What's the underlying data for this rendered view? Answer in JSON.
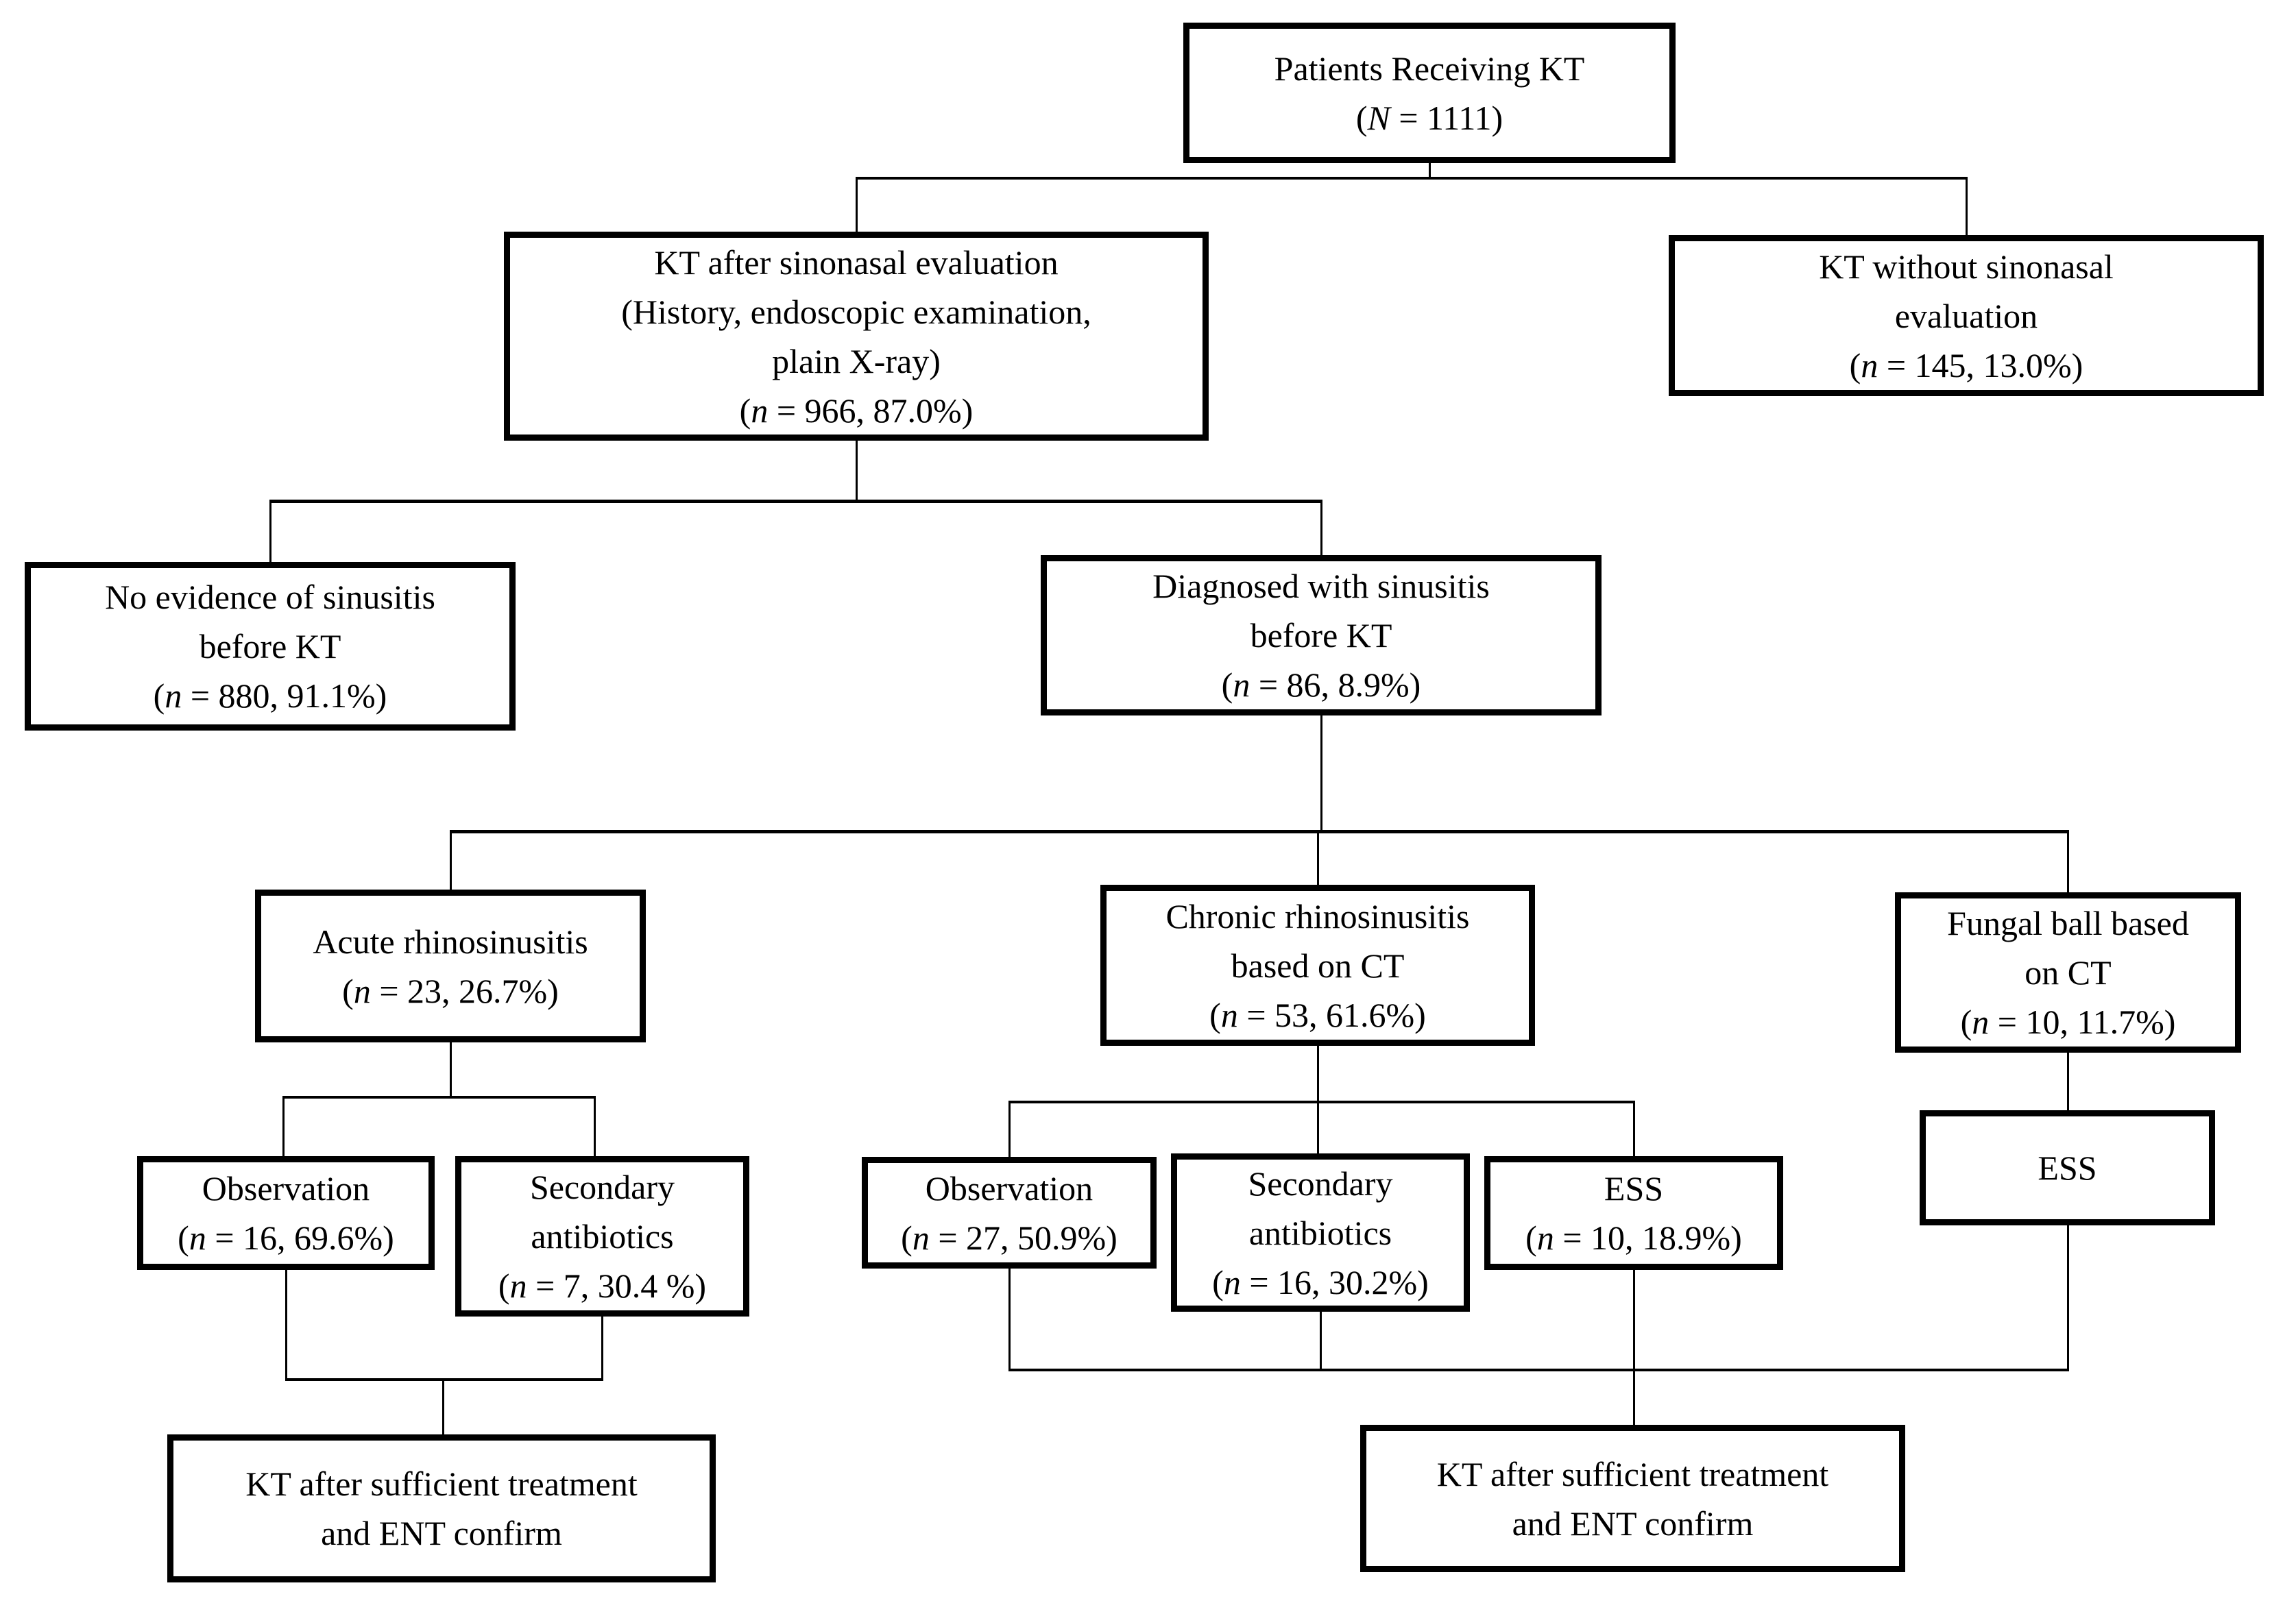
{
  "figure": {
    "type": "flowchart",
    "background_color": "#ffffff",
    "line_color": "#000000",
    "text_color": "#000000"
  },
  "nodes": {
    "root": {
      "lines": [
        "Patients Receiving KT",
        "(N = 1111)"
      ]
    },
    "eval": {
      "lines": [
        "KT after sinonasal evaluation",
        "(History, endoscopic examination,",
        "plain X-ray)",
        "(n = 966, 87.0%)"
      ]
    },
    "no_eval": {
      "lines": [
        "KT without sinonasal",
        "evaluation",
        "(n = 145, 13.0%)"
      ]
    },
    "no_sinusitis": {
      "lines": [
        "No evidence of sinusitis",
        "before KT",
        "(n = 880, 91.1%)"
      ]
    },
    "diagnosed": {
      "lines": [
        "Diagnosed with sinusitis",
        "before KT",
        "(n = 86, 8.9%)"
      ]
    },
    "acute": {
      "lines": [
        "Acute rhinosinusitis",
        "(n = 23, 26.7%)"
      ]
    },
    "chronic": {
      "lines": [
        "Chronic rhinosinusitis",
        "based on CT",
        "(n = 53, 61.6%)"
      ]
    },
    "fungal": {
      "lines": [
        "Fungal ball based",
        "on CT",
        "(n = 10, 11.7%)"
      ]
    },
    "obs_acute": {
      "lines": [
        "Observation",
        "(n = 16, 69.6%)"
      ]
    },
    "abx_acute": {
      "lines": [
        "Secondary",
        "antibiotics",
        "(n = 7, 30.4 %)"
      ]
    },
    "obs_chronic": {
      "lines": [
        "Observation",
        "(n = 27, 50.9%)"
      ]
    },
    "abx_chronic": {
      "lines": [
        "Secondary",
        "antibiotics",
        "(n = 16, 30.2%)"
      ]
    },
    "ess_chronic": {
      "lines": [
        "ESS",
        "(n = 10, 18.9%)"
      ]
    },
    "ess_fungal": {
      "lines": [
        "ESS"
      ]
    },
    "kt_left": {
      "lines": [
        "KT after sufficient treatment",
        "and ENT confirm"
      ]
    },
    "kt_right": {
      "lines": [
        "KT after sufficient treatment",
        "and ENT confirm"
      ]
    }
  }
}
